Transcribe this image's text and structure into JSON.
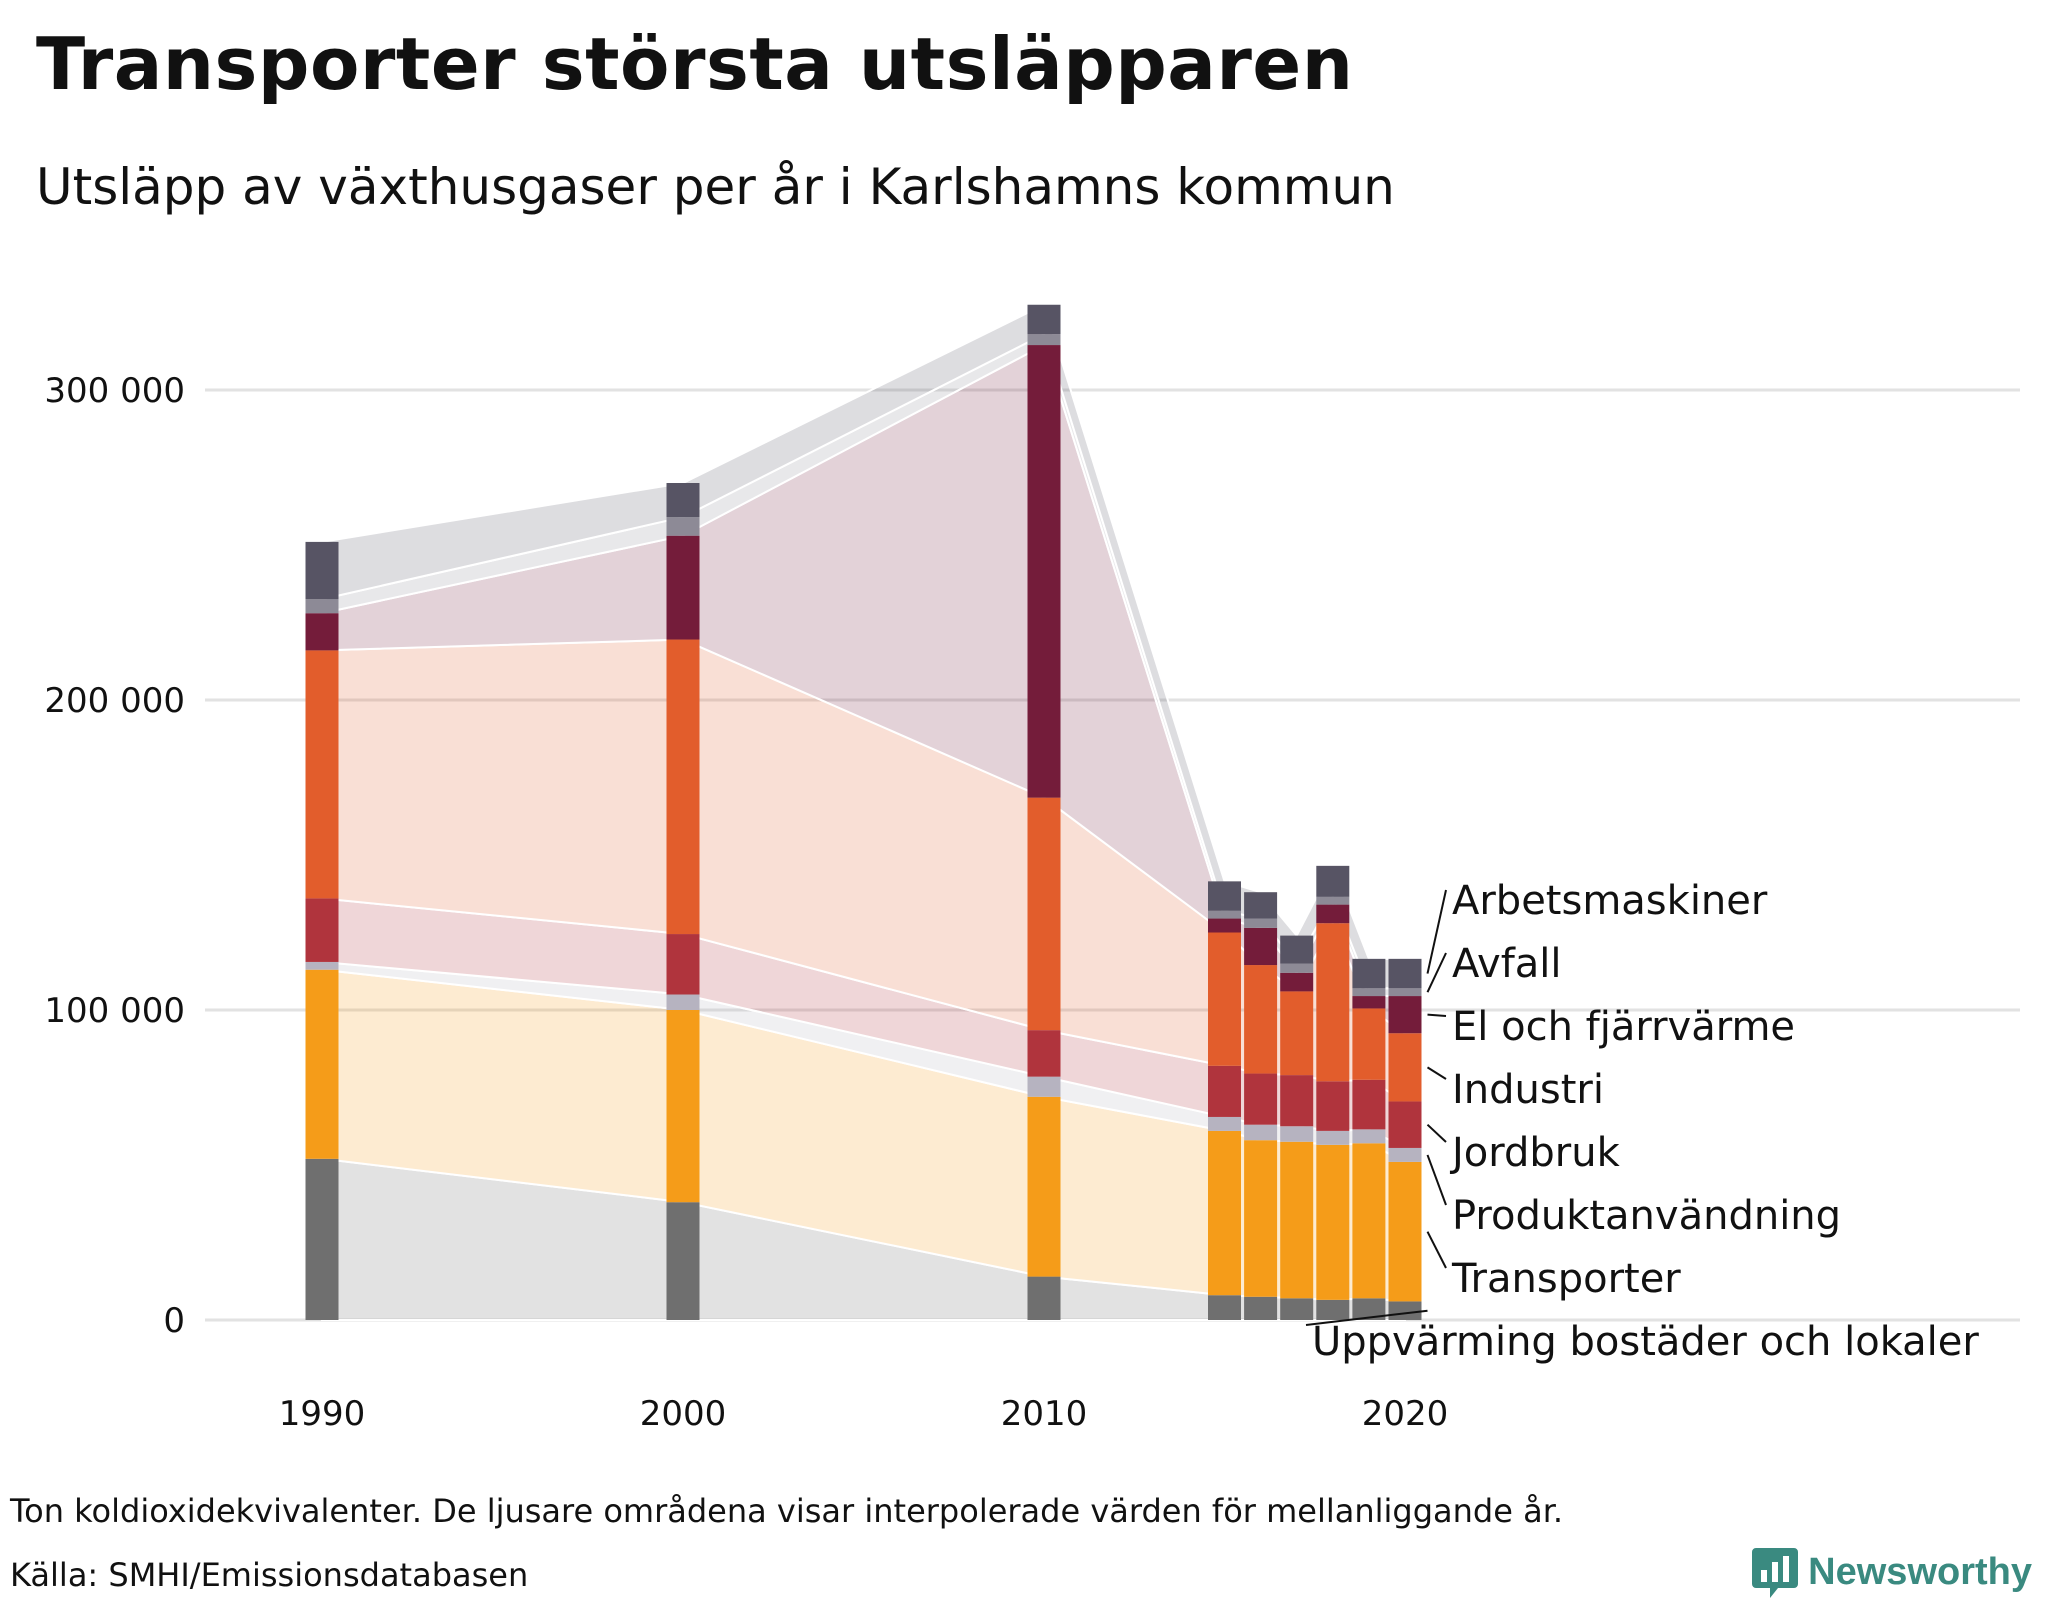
{
  "title": "Transporter största utsläpparen",
  "subtitle": "Utsläpp av växthusgaser per år i Karlshamns kommun",
  "footnote": "Ton koldioxidekvivalenter. De ljusare områdena visar interpolerade värden för mellanliggande år.",
  "source": "Källa: SMHI/Emissionsdatabasen",
  "brand": "Newsworthy",
  "chart_data": {
    "type": "bar",
    "stacked": true,
    "x": [
      1990,
      2000,
      2010,
      2015,
      2016,
      2017,
      2018,
      2019,
      2020
    ],
    "x_ticks": [
      "1990",
      "2000",
      "2010",
      "2020"
    ],
    "y_ticks": [
      "0",
      "100 000",
      "200 000",
      "300 000"
    ],
    "ylim": [
      0,
      330000
    ],
    "grid": true,
    "interpolated_areas": true,
    "legend_placement": "right",
    "series": [
      {
        "name": "Uppvärming bostäder och lokaler",
        "color": "#6f6f6f",
        "values": [
          52000,
          38000,
          14000,
          8000,
          7500,
          7000,
          6500,
          7000,
          6000
        ]
      },
      {
        "name": "Transporter",
        "color": "#f59c19",
        "values": [
          61000,
          62000,
          58000,
          53000,
          50500,
          50500,
          50000,
          50000,
          45000
        ]
      },
      {
        "name": "Produktanvändning",
        "color": "#b6b3c0",
        "values": [
          2500,
          5000,
          6500,
          4500,
          5000,
          5000,
          4500,
          4500,
          4500
        ]
      },
      {
        "name": "Jordbruk",
        "color": "#b0343d",
        "values": [
          20500,
          19500,
          15000,
          16500,
          16500,
          16500,
          16000,
          16000,
          15000
        ]
      },
      {
        "name": "Industri",
        "color": "#e25d2c",
        "values": [
          80000,
          95000,
          75000,
          43000,
          35000,
          27000,
          51000,
          23000,
          22000
        ]
      },
      {
        "name": "El och fjärrvärme",
        "color": "#741c3a",
        "values": [
          12000,
          33500,
          146000,
          4500,
          12000,
          6000,
          6000,
          4000,
          12000
        ]
      },
      {
        "name": "Avfall",
        "color": "#8d8a96",
        "values": [
          4500,
          6000,
          3500,
          2500,
          3000,
          3000,
          2500,
          2500,
          2500
        ]
      },
      {
        "name": "Arbetsmaskiner",
        "color": "#575464",
        "values": [
          18500,
          11000,
          9500,
          9500,
          8500,
          9000,
          10000,
          9500,
          9500
        ]
      }
    ]
  }
}
